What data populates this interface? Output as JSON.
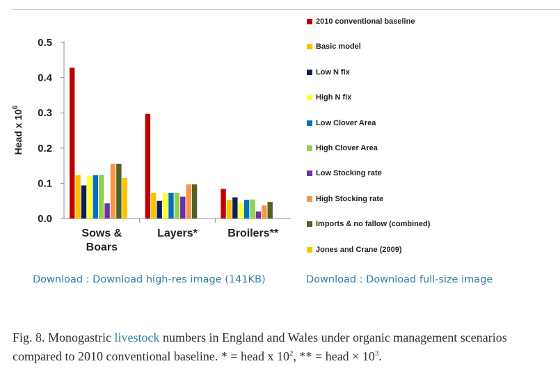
{
  "chart_data": {
    "type": "bar",
    "categories": [
      "Sows & Boars",
      "Layers*",
      "Broilers**"
    ],
    "ylabel": "Head x 10",
    "ylabel_sup": "6",
    "ylim": [
      0,
      0.5
    ],
    "yticks": [
      "0.0",
      "0.1",
      "0.2",
      "0.3",
      "0.4",
      "0.5"
    ],
    "grid": false,
    "legend_position": "right",
    "series": [
      {
        "name": "2010 conventional baseline",
        "color": "#c00000",
        "values": [
          0.428,
          0.297,
          0.084
        ]
      },
      {
        "name": "Basic model",
        "color": "#ffc000",
        "values": [
          0.123,
          0.073,
          0.053
        ]
      },
      {
        "name": "Low N fix",
        "color": "#0f1d57",
        "values": [
          0.094,
          0.05,
          0.06
        ]
      },
      {
        "name": "High N fix",
        "color": "#ffff33",
        "values": [
          0.12,
          0.073,
          0.045
        ]
      },
      {
        "name": "Low Clover Area",
        "color": "#0070c0",
        "values": [
          0.123,
          0.073,
          0.053
        ]
      },
      {
        "name": "High Clover Area",
        "color": "#92d050",
        "values": [
          0.124,
          0.073,
          0.054
        ]
      },
      {
        "name": "Low Stocking rate",
        "color": "#7030a0",
        "values": [
          0.043,
          0.062,
          0.02
        ]
      },
      {
        "name": "High Stocking rate",
        "color": "#f79646",
        "values": [
          0.155,
          0.097,
          0.037
        ]
      },
      {
        "name": "Imports & no fallow (combined)",
        "color": "#4f6228",
        "values": [
          0.155,
          0.097,
          0.047
        ]
      },
      {
        "name": "Jones and Crane (2009)",
        "color": "#ffc000",
        "values": [
          0.115,
          null,
          null
        ]
      }
    ]
  },
  "links": {
    "download_high_res": "Download : Download high-res image (141KB)",
    "download_full_size": "Download : Download full-size image"
  },
  "caption": {
    "before": "Fig. 8. Monogastric ",
    "link": "livestock",
    "after": " numbers in England and Wales under organic management scenarios compared to 2010 conventional baseline. * = head x 10",
    "sup1": "2",
    "mid": ", ** = head × 10",
    "sup2": "3",
    "end": "."
  }
}
